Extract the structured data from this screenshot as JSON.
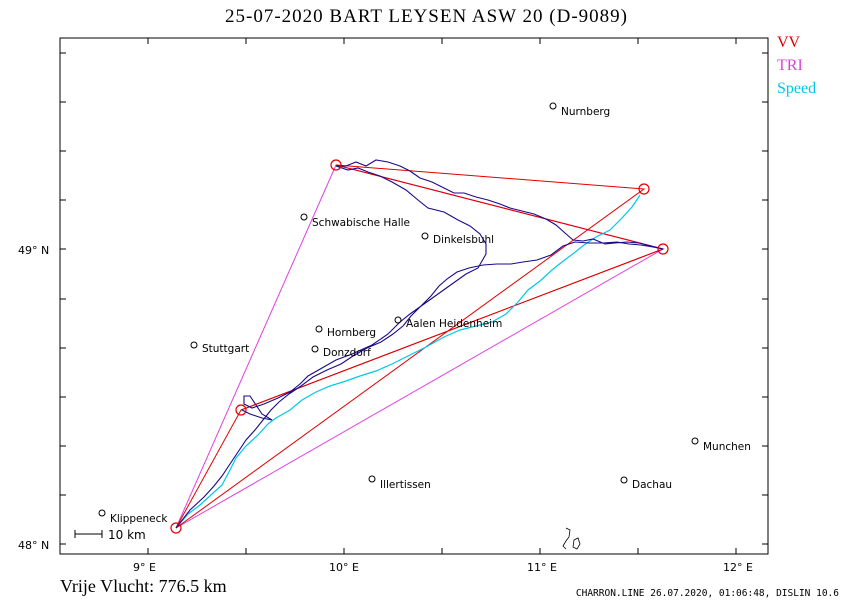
{
  "header": {
    "title": "25-07-2020   BART LEYSEN   ASW 20 (D-9089)"
  },
  "legend": [
    {
      "label": "VV",
      "color": "#e00000"
    },
    {
      "label": "TRI",
      "color": "#e040e0"
    },
    {
      "label": "Speed",
      "color": "#00c8e8"
    }
  ],
  "axes": {
    "x_labels": [
      "9° E",
      "10° E",
      "11° E",
      "12° E"
    ],
    "y_labels": [
      "49° N",
      "48° N"
    ]
  },
  "cities": [
    {
      "name": "Nurnberg"
    },
    {
      "name": "Schwabische Halle"
    },
    {
      "name": "Dinkelsbuhl"
    },
    {
      "name": "Stuttgart"
    },
    {
      "name": "Hornberg"
    },
    {
      "name": "Aalen Heidenheim"
    },
    {
      "name": "Donzdorf"
    },
    {
      "name": "Munchen"
    },
    {
      "name": "Illertissen"
    },
    {
      "name": "Dachau"
    },
    {
      "name": "Klippeneck"
    }
  ],
  "scale_bar": {
    "label": "10 km"
  },
  "footer": {
    "distance": "Vrije Vlucht:  776.5 km",
    "info": "CHARRON.LINE 26.07.2020, 01:06:48, DISLIN 10.6"
  },
  "colors": {
    "track": "#1a0a8a",
    "vv": "#e00000",
    "tri": "#e040e0",
    "speed": "#00c8e8"
  }
}
